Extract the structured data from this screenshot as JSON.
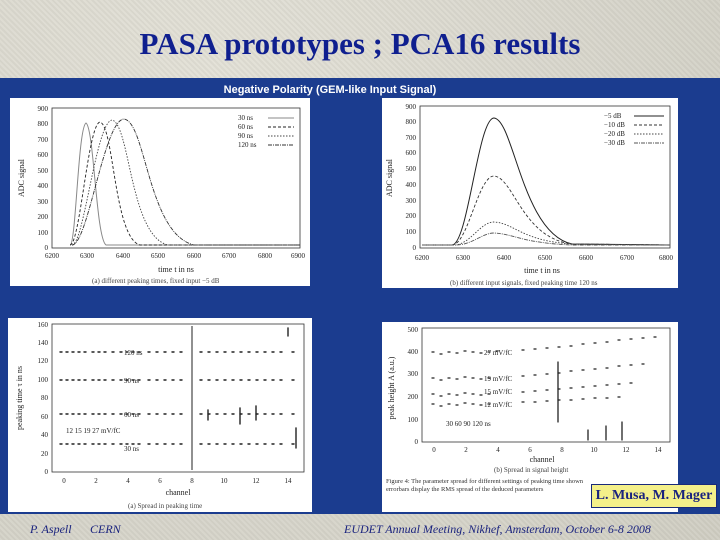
{
  "slide": {
    "title": "PASA prototypes ; PCA16 results",
    "subtitle": "Negative Polarity (GEM-like Input Signal)",
    "authors": "L. Musa, M. Mager",
    "footer": {
      "presenter": "P. Aspell",
      "org": "CERN",
      "event": "EUDET Annual Meeting, Nikhef, Amsterdam, October 6-8 2008"
    },
    "colors": {
      "title": "#0f1f8f",
      "panel": "#1b3c8f",
      "author_box": "#f4f08a"
    }
  },
  "plot_a": {
    "ylabel": "ADC signal",
    "xlabel": "time t in ns",
    "caption": "(a) different peaking times, fixed input −5 dB",
    "yticks": [
      "0",
      "100",
      "200",
      "300",
      "400",
      "500",
      "600",
      "700",
      "800",
      "900"
    ],
    "xticks": [
      "6200",
      "6300",
      "6400",
      "6500",
      "6600",
      "6700",
      "6800",
      "6900"
    ],
    "legend": [
      "30 ns",
      "60 ns",
      "90 ns",
      "120 ns"
    ]
  },
  "plot_b": {
    "ylabel": "ADC signal",
    "xlabel": "time t in ns",
    "caption": "(b) different input signals, fixed peaking time 120 ns",
    "yticks": [
      "0",
      "100",
      "200",
      "300",
      "400",
      "500",
      "600",
      "700",
      "800",
      "900"
    ],
    "xticks": [
      "6200",
      "6300",
      "6400",
      "6500",
      "6600",
      "6700",
      "6800"
    ],
    "legend": [
      "−5 dB",
      "−10 dB",
      "−20 dB",
      "−30 dB"
    ]
  },
  "plot_c": {
    "ylabel": "peaking time τ in ns",
    "xlabel": "channel",
    "caption": "(a) Spread in peaking time",
    "yticks": [
      "0",
      "20",
      "40",
      "60",
      "80",
      "100",
      "120",
      "140",
      "160"
    ],
    "xticks": [
      "0",
      "2",
      "4",
      "6",
      "8",
      "10",
      "12",
      "14"
    ],
    "row_labels": [
      "120 ns",
      "90 ns",
      "60 ns",
      "30 ns"
    ],
    "gain_label": "12  15  19  27   mV/fC"
  },
  "plot_d": {
    "ylabel": "peak height A (a.u.)",
    "xlabel": "channel",
    "caption": "(b) Spread in signal height",
    "yticks": [
      "0",
      "100",
      "200",
      "300",
      "400",
      "500"
    ],
    "xticks": [
      "0",
      "2",
      "4",
      "6",
      "8",
      "10",
      "12",
      "14"
    ],
    "row_labels": [
      "27 mV/fC",
      "19 mV/fC",
      "15 mV/fC",
      "12 mV/fC"
    ],
    "time_label": "30  60  90  120 ns",
    "figure_caption": "Figure 4: The parameter spread for different settings of peaking time shown errorbars display the RMS spread of the deduced parameters"
  }
}
